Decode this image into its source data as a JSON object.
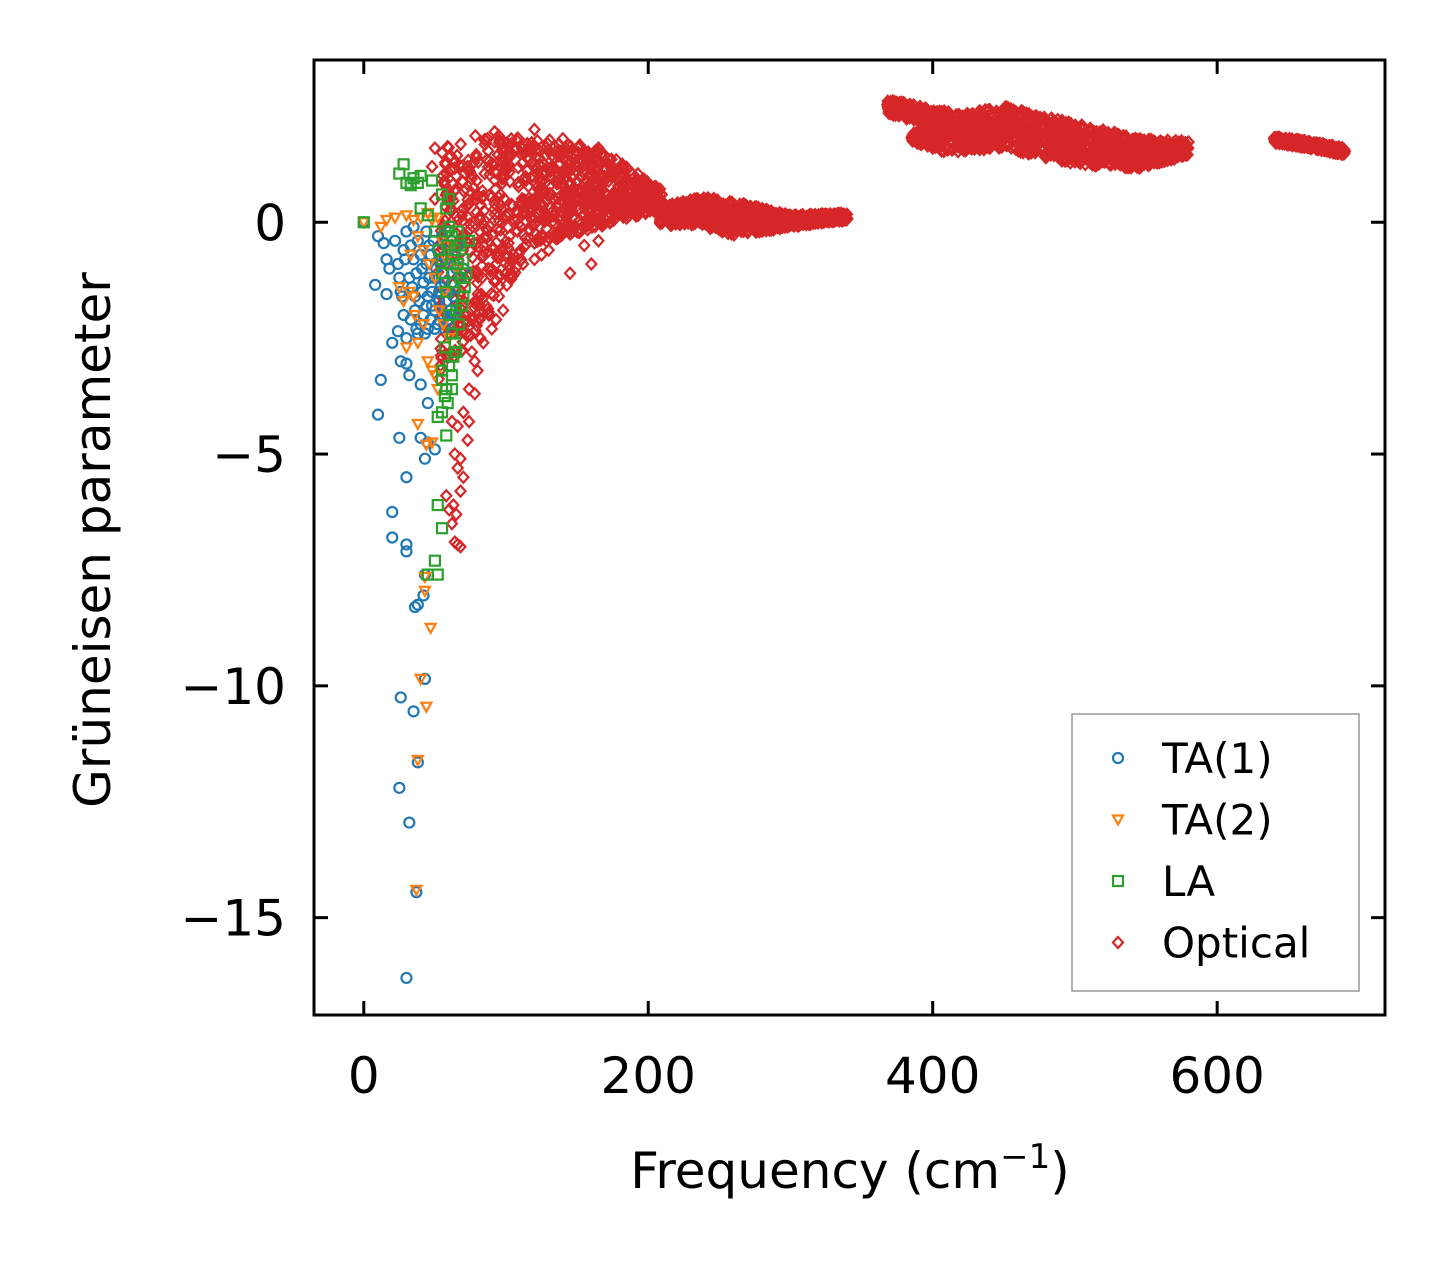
{
  "chart_data": {
    "type": "scatter",
    "title": "",
    "xlabel": "Frequency (cm",
    "xlabel_sup": "−1",
    "xlabel_tail": ")",
    "ylabel": "Grüneisen parameter",
    "xlim": [
      -35,
      718
    ],
    "ylim": [
      -17.1,
      3.5
    ],
    "xticks": [
      0,
      200,
      400,
      600
    ],
    "xtick_labels": [
      "0",
      "200",
      "400",
      "600"
    ],
    "yticks": [
      0,
      -5,
      -10,
      -15
    ],
    "ytick_labels": [
      "0",
      "−5",
      "−10",
      "−15"
    ],
    "grid": false,
    "legend_position": "bottom-right",
    "series": [
      {
        "name": "TA(1)",
        "marker": "circle",
        "color": "#1f77b4",
        "points": [
          [
            0,
            0
          ],
          [
            10,
            -0.3
          ],
          [
            14,
            -0.45
          ],
          [
            16,
            -0.8
          ],
          [
            18,
            -1.0
          ],
          [
            8,
            -1.35
          ],
          [
            16,
            -1.55
          ],
          [
            25,
            -1.2
          ],
          [
            27,
            -1.6
          ],
          [
            28,
            -2.0
          ],
          [
            24,
            -2.35
          ],
          [
            20,
            -2.6
          ],
          [
            30,
            -2.5
          ],
          [
            26,
            -3.0
          ],
          [
            30,
            -3.05
          ],
          [
            32,
            -3.3
          ],
          [
            12,
            -3.4
          ],
          [
            40,
            -3.5
          ],
          [
            45,
            -3.9
          ],
          [
            10,
            -4.15
          ],
          [
            25,
            -4.65
          ],
          [
            40,
            -4.65
          ],
          [
            50,
            -4.9
          ],
          [
            45,
            -4.75
          ],
          [
            43,
            -5.1
          ],
          [
            30,
            -5.5
          ],
          [
            20,
            -6.25
          ],
          [
            20,
            -6.8
          ],
          [
            30,
            -6.95
          ],
          [
            30,
            -7.1
          ],
          [
            43,
            -7.6
          ],
          [
            38,
            -8.25
          ],
          [
            36,
            -8.3
          ],
          [
            42,
            -8.05
          ],
          [
            43,
            -9.85
          ],
          [
            26,
            -10.25
          ],
          [
            35,
            -10.55
          ],
          [
            38,
            -11.65
          ],
          [
            25,
            -12.2
          ],
          [
            32,
            -12.95
          ],
          [
            37,
            -14.45
          ],
          [
            30,
            -16.3
          ],
          [
            30,
            -0.2
          ],
          [
            33,
            -0.5
          ],
          [
            35,
            -0.8
          ],
          [
            37,
            -1.1
          ],
          [
            38,
            -0.4
          ],
          [
            40,
            -0.7
          ],
          [
            42,
            -1.3
          ],
          [
            44,
            -0.9
          ],
          [
            45,
            -1.6
          ],
          [
            46,
            -0.5
          ],
          [
            48,
            -1.8
          ],
          [
            50,
            -1.2
          ],
          [
            52,
            -0.6
          ],
          [
            54,
            -1.4
          ],
          [
            56,
            -2.0
          ],
          [
            58,
            -0.8
          ],
          [
            60,
            -1.5
          ],
          [
            62,
            -1.1
          ],
          [
            64,
            -0.9
          ],
          [
            36,
            -1.9
          ],
          [
            40,
            -2.2
          ],
          [
            43,
            -2.4
          ],
          [
            47,
            -2.1
          ],
          [
            50,
            -2.3
          ],
          [
            53,
            -1.7
          ],
          [
            57,
            -1.3
          ],
          [
            59,
            -2.1
          ],
          [
            61,
            -1.9
          ],
          [
            63,
            -1.6
          ],
          [
            65,
            -1.0
          ],
          [
            34,
            -1.4
          ],
          [
            39,
            -1.7
          ],
          [
            41,
            -1.0
          ],
          [
            45,
            -2.3
          ],
          [
            49,
            -0.4
          ],
          [
            51,
            -1.0
          ],
          [
            55,
            -0.3
          ],
          [
            60,
            -0.6
          ],
          [
            66,
            -0.5
          ],
          [
            44,
            -0.2
          ],
          [
            38,
            -2.4
          ],
          [
            42,
            -2.0
          ],
          [
            48,
            -1.5
          ],
          [
            52,
            -2.2
          ],
          [
            56,
            -1.1
          ],
          [
            58,
            -1.7
          ],
          [
            62,
            -1.3
          ],
          [
            64,
            -0.7
          ],
          [
            67,
            -1.2
          ],
          [
            70,
            -1.0
          ],
          [
            35,
            -0.1
          ],
          [
            28,
            -0.6
          ],
          [
            32,
            -1.2
          ],
          [
            36,
            -1.6
          ],
          [
            46,
            -1.2
          ],
          [
            50,
            -1.9
          ],
          [
            54,
            -0.9
          ],
          [
            57,
            -2.3
          ],
          [
            60,
            -0.2
          ],
          [
            63,
            -2.0
          ],
          [
            22,
            -0.4
          ],
          [
            24,
            -0.9
          ],
          [
            26,
            -1.5
          ],
          [
            29,
            -0.8
          ],
          [
            33,
            -2.1
          ],
          [
            37,
            -2.3
          ],
          [
            41,
            -1.5
          ],
          [
            44,
            -1.8
          ],
          [
            47,
            -0.7
          ],
          [
            53,
            -1.5
          ]
        ]
      },
      {
        "name": "TA(2)",
        "marker": "triangle-down",
        "color": "#ff7f0e",
        "points": [
          [
            0,
            0
          ],
          [
            12,
            -0.1
          ],
          [
            16,
            0.05
          ],
          [
            22,
            0.1
          ],
          [
            30,
            0.15
          ],
          [
            35,
            0.05
          ],
          [
            40,
            0.1
          ],
          [
            45,
            0.2
          ],
          [
            48,
            0.05
          ],
          [
            52,
            0.1
          ],
          [
            38,
            -0.3
          ],
          [
            42,
            -0.6
          ],
          [
            46,
            -0.9
          ],
          [
            28,
            -1.7
          ],
          [
            32,
            -1.5
          ],
          [
            35,
            -1.6
          ],
          [
            25,
            -1.4
          ],
          [
            30,
            -2.7
          ],
          [
            38,
            -2.6
          ],
          [
            45,
            -3.0
          ],
          [
            48,
            -3.2
          ],
          [
            50,
            -3.3
          ],
          [
            52,
            -3.6
          ],
          [
            44,
            -4.8
          ],
          [
            38,
            -4.35
          ],
          [
            48,
            -4.75
          ],
          [
            43,
            -7.65
          ],
          [
            43,
            -7.95
          ],
          [
            47,
            -8.75
          ],
          [
            44,
            -10.45
          ],
          [
            40,
            -9.85
          ],
          [
            38,
            -11.6
          ],
          [
            37,
            -14.4
          ],
          [
            55,
            -0.4
          ],
          [
            58,
            -0.8
          ],
          [
            50,
            -1.2
          ],
          [
            53,
            -1.9
          ],
          [
            56,
            -2.2
          ],
          [
            60,
            -2.5
          ],
          [
            42,
            -2.2
          ],
          [
            36,
            -2.0
          ],
          [
            62,
            -0.5
          ],
          [
            65,
            -1.0
          ],
          [
            57,
            -1.5
          ],
          [
            33,
            -0.7
          ]
        ]
      },
      {
        "name": "LA",
        "marker": "square",
        "color": "#2ca02c",
        "points": [
          [
            0,
            0
          ],
          [
            25,
            1.05
          ],
          [
            28,
            1.25
          ],
          [
            30,
            0.85
          ],
          [
            33,
            0.8
          ],
          [
            35,
            0.95
          ],
          [
            38,
            0.85
          ],
          [
            40,
            1.0
          ],
          [
            48,
            0.9
          ],
          [
            55,
            0.6
          ],
          [
            60,
            0.5
          ],
          [
            58,
            0.3
          ],
          [
            40,
            0.3
          ],
          [
            45,
            0.15
          ],
          [
            50,
            -0.2
          ],
          [
            55,
            -0.8
          ],
          [
            58,
            -1.5
          ],
          [
            60,
            -2.0
          ],
          [
            62,
            -2.4
          ],
          [
            64,
            -2.6
          ],
          [
            65,
            -2.8
          ],
          [
            55,
            -3.2
          ],
          [
            55,
            -3.4
          ],
          [
            58,
            -3.6
          ],
          [
            62,
            -3.6
          ],
          [
            57,
            -3.75
          ],
          [
            52,
            -4.2
          ],
          [
            55,
            -4.1
          ],
          [
            58,
            -4.6
          ],
          [
            52,
            -6.1
          ],
          [
            55,
            -6.6
          ],
          [
            50,
            -7.3
          ],
          [
            52,
            -7.6
          ],
          [
            45,
            -7.6
          ],
          [
            60,
            -0.1
          ],
          [
            62,
            -0.3
          ],
          [
            64,
            -0.6
          ],
          [
            66,
            -0.9
          ],
          [
            68,
            -1.2
          ],
          [
            70,
            -1.6
          ],
          [
            65,
            -1.9
          ],
          [
            67,
            -2.2
          ],
          [
            63,
            -1.3
          ],
          [
            61,
            -0.9
          ],
          [
            59,
            -0.5
          ],
          [
            57,
            -0.2
          ],
          [
            55,
            -1.1
          ],
          [
            53,
            -0.6
          ],
          [
            66,
            -0.2
          ],
          [
            68,
            -0.5
          ],
          [
            70,
            -0.8
          ],
          [
            72,
            -1.1
          ],
          [
            74,
            -0.4
          ],
          [
            71,
            -1.4
          ],
          [
            69,
            -1.8
          ],
          [
            63,
            -2.9
          ],
          [
            60,
            -3.1
          ],
          [
            57,
            -2.7
          ],
          [
            62,
            -3.3
          ],
          [
            59,
            -3.9
          ]
        ]
      },
      {
        "name": "Optical",
        "marker": "diamond",
        "color": "#d62728",
        "band_series": true,
        "bands": [
          {
            "x": [
              52,
              80,
              120,
              165,
              200,
              210
            ],
            "upper": [
              1.6,
              1.9,
              1.85,
              1.6,
              0.9,
              0.7
            ],
            "lower": [
              -3.5,
              -2.3,
              -0.5,
              -0.1,
              0.2,
              0.15
            ]
          },
          {
            "x": [
              208,
              240,
              260,
              300,
              340
            ],
            "upper": [
              0.35,
              0.55,
              0.45,
              0.15,
              0.2
            ],
            "lower": [
              -0.05,
              -0.1,
              -0.3,
              -0.1,
              0.05
            ]
          },
          {
            "x": [
              368,
              385,
              402,
              412
            ],
            "upper": [
              2.65,
              2.55,
              2.4,
              2.4
            ],
            "lower": [
              2.35,
              2.2,
              2.1,
              2.05
            ]
          },
          {
            "x": [
              385,
              410,
              450,
              490,
              520,
              545,
              580
            ],
            "upper": [
              1.9,
              2.3,
              2.5,
              2.2,
              2.0,
              1.8,
              1.75
            ],
            "lower": [
              1.75,
              1.5,
              1.6,
              1.3,
              1.2,
              1.15,
              1.45
            ]
          },
          {
            "x": [
              640,
              665,
              690
            ],
            "upper": [
              1.85,
              1.75,
              1.6
            ],
            "lower": [
              1.7,
              1.6,
              1.45
            ]
          }
        ],
        "points": [
          [
            50,
            1.6
          ],
          [
            55,
            1.5
          ],
          [
            48,
            1.2
          ],
          [
            60,
            1.4
          ],
          [
            57,
            0.8
          ],
          [
            65,
            1.0
          ],
          [
            50,
            0.5
          ],
          [
            70,
            0.3
          ],
          [
            62,
            -0.5
          ],
          [
            66,
            -1.2
          ],
          [
            69,
            -1.8
          ],
          [
            72,
            -2.4
          ],
          [
            76,
            -2.8
          ],
          [
            80,
            -3.2
          ],
          [
            74,
            -3.6
          ],
          [
            70,
            -4.1
          ],
          [
            66,
            -4.4
          ],
          [
            62,
            -4.3
          ],
          [
            64,
            -5.0
          ],
          [
            66,
            -5.3
          ],
          [
            70,
            -5.5
          ],
          [
            68,
            -5.8
          ],
          [
            63,
            -6.1
          ],
          [
            65,
            -6.3
          ],
          [
            62,
            -6.5
          ],
          [
            64,
            -6.9
          ],
          [
            68,
            -7.0
          ],
          [
            66,
            -6.95
          ],
          [
            58,
            -5.9
          ],
          [
            60,
            -6.2
          ],
          [
            74,
            -4.3
          ],
          [
            78,
            -3.0
          ],
          [
            82,
            -2.5
          ],
          [
            88,
            -2.0
          ],
          [
            95,
            -1.6
          ],
          [
            100,
            -1.1
          ],
          [
            105,
            -0.7
          ],
          [
            112,
            -0.9
          ],
          [
            120,
            -0.8
          ],
          [
            130,
            -0.6
          ],
          [
            138,
            -0.3
          ],
          [
            145,
            -1.1
          ],
          [
            155,
            -0.5
          ],
          [
            165,
            -0.4
          ],
          [
            160,
            -0.9
          ],
          [
            125,
            -0.7
          ],
          [
            98,
            -1.9
          ],
          [
            93,
            -2.1
          ],
          [
            90,
            -2.3
          ],
          [
            86,
            -1.8
          ],
          [
            84,
            -2.6
          ],
          [
            78,
            -3.7
          ],
          [
            73,
            -4.7
          ],
          [
            68,
            -5.1
          ],
          [
            92,
            1.95
          ],
          [
            120,
            2.0
          ],
          [
            87,
            1.8
          ],
          [
            104,
            1.7
          ],
          [
            140,
            1.8
          ],
          [
            165,
            1.6
          ]
        ]
      }
    ]
  }
}
